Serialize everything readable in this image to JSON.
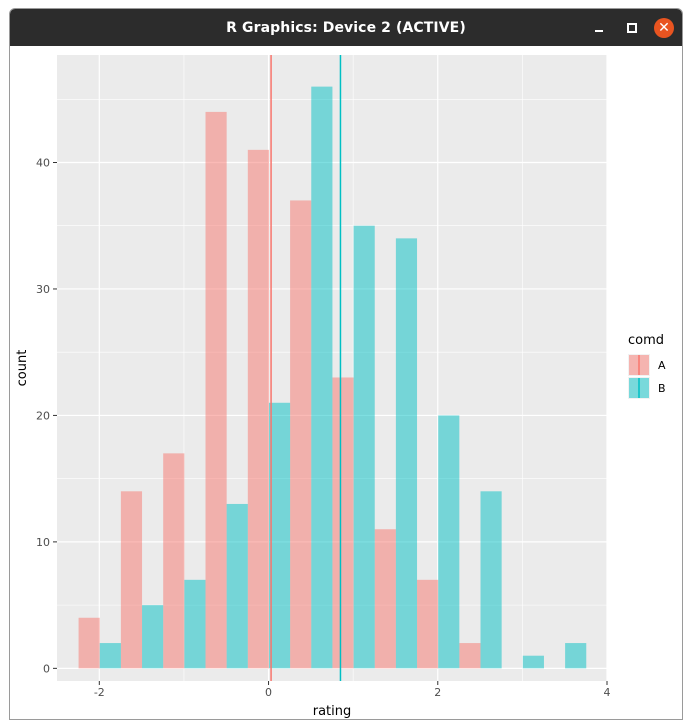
{
  "window": {
    "title": "R Graphics: Device 2 (ACTIVE)",
    "minimize_icon": "minimize-icon",
    "maximize_icon": "maximize-icon",
    "close_icon": "close-icon",
    "close_color": "#e95420"
  },
  "chart_data": {
    "type": "bar",
    "xlabel": "rating",
    "ylabel": "count",
    "xlim": [
      -2.5,
      4.0
    ],
    "ylim": [
      -1.0,
      48.5
    ],
    "x_ticks": [
      -2,
      0,
      2,
      4
    ],
    "x_tick_labels": [
      "-2",
      "0",
      "2",
      "4"
    ],
    "y_ticks": [
      0,
      10,
      20,
      30,
      40
    ],
    "y_tick_labels": [
      "0",
      "10",
      "20",
      "30",
      "40"
    ],
    "grid": true,
    "panel_background": "#ebebeb",
    "legend": {
      "title": "comd",
      "position": "right",
      "entries": [
        "A",
        "B"
      ]
    },
    "bar_width": 0.25,
    "series": [
      {
        "name": "A",
        "color": "#f8766d",
        "mean": 0.03,
        "bars": [
          {
            "x": -2.12,
            "count": 4
          },
          {
            "x": -1.62,
            "count": 14
          },
          {
            "x": -1.12,
            "count": 17
          },
          {
            "x": -0.62,
            "count": 44
          },
          {
            "x": -0.12,
            "count": 41
          },
          {
            "x": 0.38,
            "count": 37
          },
          {
            "x": 0.88,
            "count": 23
          },
          {
            "x": 1.38,
            "count": 11
          },
          {
            "x": 1.88,
            "count": 7
          },
          {
            "x": 2.38,
            "count": 2
          }
        ]
      },
      {
        "name": "B",
        "color": "#00bfc4",
        "mean": 0.85,
        "bars": [
          {
            "x": -1.87,
            "count": 2
          },
          {
            "x": -1.37,
            "count": 5
          },
          {
            "x": -0.87,
            "count": 7
          },
          {
            "x": -0.37,
            "count": 13
          },
          {
            "x": 0.13,
            "count": 21
          },
          {
            "x": 0.63,
            "count": 46
          },
          {
            "x": 1.13,
            "count": 35
          },
          {
            "x": 1.63,
            "count": 34
          },
          {
            "x": 2.13,
            "count": 20
          },
          {
            "x": 2.63,
            "count": 14
          },
          {
            "x": 3.13,
            "count": 1
          },
          {
            "x": 3.63,
            "count": 2
          }
        ]
      }
    ]
  }
}
